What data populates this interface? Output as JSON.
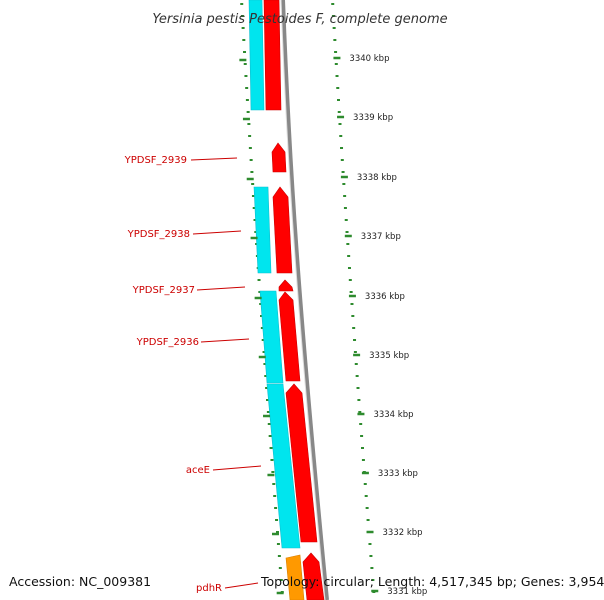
{
  "title": "Yersinia pestis Pestoides F, complete genome",
  "accession": "Accession: NC_009381",
  "topology": "Topology: circular; Length: 4,517,345 bp; Genes: 3,954",
  "scale_labels": [
    "3340 kbp",
    "3339 kbp",
    "3338 kbp",
    "3337 kbp",
    "3336 kbp",
    "3335 kbp",
    "3334 kbp",
    "3333 kbp",
    "3332 kbp",
    "3331 kbp"
  ],
  "gene_labels": [
    "YPDSF_2939",
    "YPDSF_2938",
    "YPDSF_2937",
    "YPDSF_2936",
    "aceE",
    "pdhR"
  ],
  "colors": {
    "forward_cds": "#ff0000",
    "cds_strip": "#00e5ee",
    "other_feature": "#ff9900",
    "backbone": "#888888",
    "ticks": "#2e8b2e",
    "label": "#cc0000"
  }
}
